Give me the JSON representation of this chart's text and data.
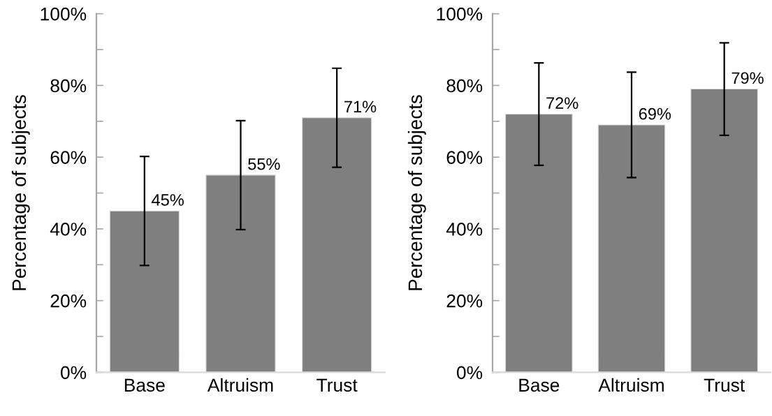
{
  "chart_data": [
    {
      "type": "bar",
      "categories": [
        "Base",
        "Altruism",
        "Trust"
      ],
      "values": [
        45,
        55,
        71
      ],
      "errors": [
        15.2,
        15.2,
        13.8
      ],
      "color": "#7f7f7f",
      "value_labels": [
        "45%",
        "55%",
        "71%"
      ],
      "ylabel": "Percentage of subjects",
      "ylim": [
        0,
        100
      ],
      "yticks": [
        {
          "value": 0,
          "label": "0%"
        },
        {
          "value": 10,
          "label": null
        },
        {
          "value": 20,
          "label": "20%"
        },
        {
          "value": 30,
          "label": null
        },
        {
          "value": 40,
          "label": "40%"
        },
        {
          "value": 50,
          "label": null
        },
        {
          "value": 60,
          "label": "60%"
        },
        {
          "value": 70,
          "label": null
        },
        {
          "value": 80,
          "label": "80%"
        },
        {
          "value": 90,
          "label": null
        },
        {
          "value": 100,
          "label": "100%"
        }
      ]
    },
    {
      "type": "bar",
      "categories": [
        "Base",
        "Altruism",
        "Trust"
      ],
      "values": [
        72,
        69,
        79
      ],
      "errors": [
        14.3,
        14.7,
        12.9
      ],
      "color": "#7f7f7f",
      "value_labels": [
        "72%",
        "69%",
        "79%"
      ],
      "ylabel": "Percentage of subjects",
      "ylim": [
        0,
        100
      ],
      "yticks": [
        {
          "value": 0,
          "label": "0%"
        },
        {
          "value": 10,
          "label": null
        },
        {
          "value": 20,
          "label": "20%"
        },
        {
          "value": 30,
          "label": null
        },
        {
          "value": 40,
          "label": "40%"
        },
        {
          "value": 50,
          "label": null
        },
        {
          "value": 60,
          "label": "60%"
        },
        {
          "value": 70,
          "label": null
        },
        {
          "value": 80,
          "label": "80%"
        },
        {
          "value": 90,
          "label": null
        },
        {
          "value": 100,
          "label": "100%"
        }
      ]
    }
  ]
}
